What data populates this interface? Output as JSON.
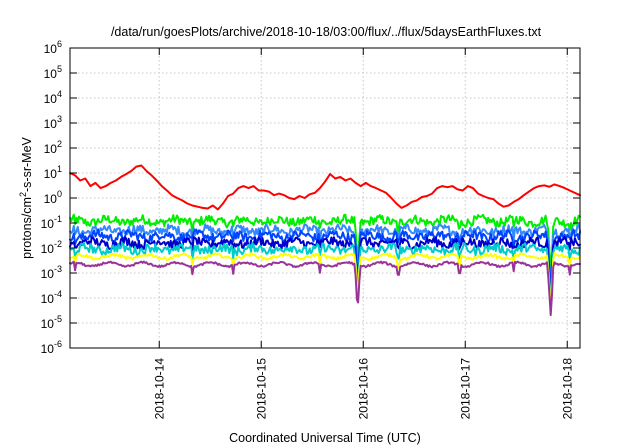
{
  "chart_data": {
    "type": "line",
    "title": "/data/run/goesPlots/archive/2018-10-18/03:00/flux/../flux/5daysEarthFluxes.txt",
    "xlabel": "Coordinated Universal Time (UTC)",
    "ylabel": "protons/cm2-s-sr-MeV",
    "ylabel_parts": {
      "base": "protons/cm",
      "sup": "2",
      "rest": "-s-sr-MeV"
    },
    "yscale": "log",
    "ylim": [
      1e-06,
      1000000.0
    ],
    "yticks": [
      {
        "base": "10",
        "exp": "-6",
        "value": 1e-06
      },
      {
        "base": "10",
        "exp": "-5",
        "value": 1e-05
      },
      {
        "base": "10",
        "exp": "-4",
        "value": 0.0001
      },
      {
        "base": "10",
        "exp": "-3",
        "value": 0.001
      },
      {
        "base": "10",
        "exp": "-2",
        "value": 0.01
      },
      {
        "base": "10",
        "exp": "-1",
        "value": 0.1
      },
      {
        "base": "10",
        "exp": "0",
        "value": 1
      },
      {
        "base": "10",
        "exp": "1",
        "value": 10
      },
      {
        "base": "10",
        "exp": "2",
        "value": 100
      },
      {
        "base": "10",
        "exp": "3",
        "value": 1000
      },
      {
        "base": "10",
        "exp": "4",
        "value": 10000
      },
      {
        "base": "10",
        "exp": "5",
        "value": 100000
      },
      {
        "base": "10",
        "exp": "6",
        "value": 1000000
      }
    ],
    "xlim": [
      "2018-10-13 03:00",
      "2018-10-18 03:00"
    ],
    "xticks": [
      "2018-10-14",
      "2018-10-15",
      "2018-10-16",
      "2018-10-17",
      "2018-10-18"
    ],
    "grid": true,
    "series": [
      {
        "color": "#ff0000",
        "x": [
          0,
          0.05,
          0.1,
          0.15,
          0.2,
          0.25,
          0.3,
          0.35,
          0.4,
          0.45,
          0.5,
          0.55,
          0.6,
          0.65,
          0.7,
          0.75,
          0.8,
          0.85,
          0.9,
          0.95,
          1.0,
          1.05,
          1.1,
          1.15,
          1.2,
          1.25,
          1.3,
          1.35,
          1.4,
          1.45,
          1.5,
          1.55,
          1.6,
          1.65,
          1.7,
          1.75,
          1.8,
          1.85,
          1.9,
          1.95,
          2.0,
          2.05,
          2.1,
          2.15,
          2.2,
          2.25,
          2.3,
          2.35,
          2.4,
          2.45,
          2.5,
          2.55,
          2.6,
          2.65,
          2.7,
          2.75,
          2.8,
          2.85,
          2.9,
          2.95,
          3.0,
          3.05,
          3.1,
          3.15,
          3.2,
          3.25,
          3.3,
          3.35,
          3.4,
          3.45,
          3.5,
          3.55,
          3.6,
          3.65,
          3.7,
          3.75,
          3.8,
          3.85,
          3.9,
          3.95,
          4.0,
          4.05,
          4.1,
          4.15,
          4.2,
          4.25,
          4.3,
          4.35,
          4.4,
          4.45,
          4.5,
          4.55,
          4.6,
          4.65,
          4.7,
          4.75,
          4.8,
          4.85,
          4.9,
          4.95,
          5.0
        ],
        "y": [
          10,
          8,
          5,
          6,
          3,
          4,
          2.5,
          3,
          4,
          5,
          7,
          9,
          12,
          18,
          20,
          12,
          8,
          5,
          3,
          2,
          1.3,
          1,
          0.8,
          0.6,
          0.5,
          0.45,
          0.4,
          0.38,
          0.5,
          0.35,
          0.6,
          1.2,
          1.5,
          2.5,
          3,
          2.5,
          3,
          2,
          2,
          1.8,
          1.3,
          1.5,
          1.3,
          1.0,
          0.9,
          1.2,
          1.0,
          1.4,
          1.6,
          2.5,
          4.5,
          9,
          6,
          7,
          5,
          6,
          4,
          3,
          4,
          3,
          2.5,
          2,
          1.6,
          1,
          0.6,
          0.4,
          0.5,
          0.7,
          0.8,
          1.1,
          1.2,
          1.5,
          2.5,
          3,
          2.7,
          3,
          2.2,
          2,
          3,
          2.5,
          1.5,
          1.2,
          1.0,
          0.9,
          0.6,
          0.45,
          0.5,
          0.7,
          0.9,
          1.3,
          1.8,
          2.5,
          3,
          3.2,
          2.8,
          3.5,
          3,
          2.5,
          2,
          1.6,
          1.3
        ]
      },
      {
        "color": "#00ee00",
        "level": 0.12
      },
      {
        "color": "#3388ff",
        "level": 0.05
      },
      {
        "color": "#0044ff",
        "level": 0.03
      },
      {
        "color": "#0000cc",
        "level": 0.016
      },
      {
        "color": "#00cccc",
        "level": 0.009
      },
      {
        "color": "#ffff00",
        "level": 0.0045
      },
      {
        "color": "#993399",
        "level": 0.0022
      }
    ]
  }
}
